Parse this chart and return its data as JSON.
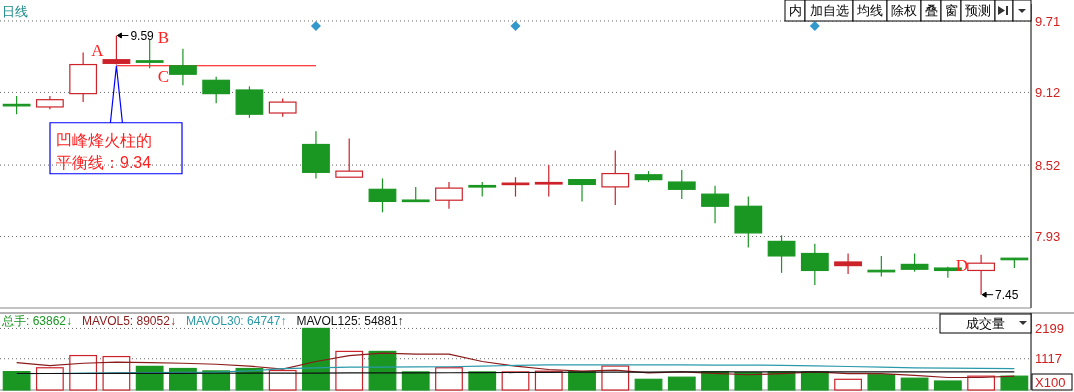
{
  "chart_data": [
    {
      "type": "candlestick",
      "title": "日线",
      "categories": [
        null,
        null,
        null,
        null,
        null,
        null,
        null,
        null,
        null,
        null,
        null,
        null,
        null,
        null,
        null,
        null,
        null,
        null,
        null,
        null,
        null,
        null,
        null,
        null,
        null,
        null,
        null,
        null,
        null,
        null,
        null
      ],
      "ohlc": [
        [
          9.02,
          9.09,
          8.94,
          9.01
        ],
        [
          9.0,
          9.09,
          8.98,
          9.06
        ],
        [
          9.11,
          9.45,
          9.04,
          9.35
        ],
        [
          9.36,
          9.59,
          9.35,
          9.39
        ],
        [
          9.38,
          9.56,
          9.32,
          9.37
        ],
        [
          9.34,
          9.48,
          9.18,
          9.27
        ],
        [
          9.22,
          9.25,
          9.03,
          9.11
        ],
        [
          9.14,
          9.17,
          8.91,
          8.94
        ],
        [
          8.95,
          9.07,
          8.92,
          9.04
        ],
        [
          8.69,
          8.8,
          8.41,
          8.46
        ],
        [
          8.42,
          8.74,
          8.42,
          8.47
        ],
        [
          8.32,
          8.41,
          8.13,
          8.22
        ],
        [
          8.23,
          8.34,
          8.22,
          8.22
        ],
        [
          8.23,
          8.38,
          8.16,
          8.33
        ],
        [
          8.35,
          8.38,
          8.26,
          8.34
        ],
        [
          8.36,
          8.42,
          8.26,
          8.37
        ],
        [
          8.37,
          8.52,
          8.26,
          8.37
        ],
        [
          8.4,
          8.4,
          8.22,
          8.36
        ],
        [
          8.34,
          8.64,
          8.19,
          8.45
        ],
        [
          8.44,
          8.47,
          8.38,
          8.4
        ],
        [
          8.38,
          8.48,
          8.24,
          8.32
        ],
        [
          8.28,
          8.35,
          8.04,
          8.18
        ],
        [
          8.18,
          8.26,
          7.84,
          7.96
        ],
        [
          7.89,
          7.94,
          7.63,
          7.77
        ],
        [
          7.79,
          7.87,
          7.53,
          7.65
        ],
        [
          7.69,
          7.79,
          7.62,
          7.72
        ],
        [
          7.65,
          7.77,
          7.6,
          7.64
        ],
        [
          7.7,
          7.79,
          7.64,
          7.66
        ],
        [
          7.67,
          7.68,
          7.59,
          7.65
        ],
        [
          7.65,
          7.78,
          7.45,
          7.71
        ],
        [
          7.75,
          7.75,
          7.67,
          7.74
        ]
      ],
      "colors": [
        "#1a9622",
        "#cc2229",
        "#cc2229",
        "#cc2229",
        "#1a9622",
        "#1a9622",
        "#1a9622",
        "#1a9622",
        "#cc2229",
        "#1a9622",
        "#cc2229",
        "#1a9622",
        "#1a9622",
        "#cc2229",
        "#1a9622",
        "#cc2229",
        "#cc2229",
        "#1a9622",
        "#cc2229",
        "#1a9622",
        "#1a9622",
        "#1a9622",
        "#1a9622",
        "#1a9622",
        "#1a9622",
        "#cc2229",
        "#1a9622",
        "#1a9622",
        "#1a9622",
        "#cc2229",
        "#1a9622"
      ],
      "ylim": [
        7.34,
        9.85
      ],
      "yticks": [
        9.71,
        9.12,
        8.52,
        7.93
      ],
      "grid": "y",
      "ref_lines": [
        {
          "axis": "y",
          "value": 9.34,
          "label": "凹峰烽火柱的平衡线：9.34",
          "color": "#ff0000"
        }
      ],
      "annotations": [
        "A",
        "9.59",
        "B",
        "C",
        "D",
        "7.45",
        "内",
        "加自选",
        "均线",
        "除权",
        "叠",
        "窗",
        "预测"
      ]
    },
    {
      "type": "bar",
      "categories": [
        null,
        null,
        null,
        null,
        null,
        null,
        null,
        null,
        null,
        null,
        null,
        null,
        null,
        null,
        null,
        null,
        null,
        null,
        null,
        null,
        null,
        null,
        null,
        null,
        null,
        null,
        null,
        null,
        null,
        null,
        null
      ],
      "ylim": [
        0,
        2750
      ],
      "yticks": [
        2199,
        1117
      ],
      "ylabel": "X100",
      "grid": "y",
      "legend": "top left",
      "annotations": [
        "成交量"
      ],
      "series": [
        {
          "name": "总手: 63862↓",
          "type": "bar",
          "color": "#1a9622",
          "colors": [
            "#1a9622",
            "#cc2229",
            "#cc2229",
            "#cc2229",
            "#1a9622",
            "#1a9622",
            "#1a9622",
            "#1a9622",
            "#cc2229",
            "#1a9622",
            "#cc2229",
            "#1a9622",
            "#1a9622",
            "#cc2229",
            "#1a9622",
            "#cc2229",
            "#cc2229",
            "#1a9622",
            "#cc2229",
            "#1a9622",
            "#1a9622",
            "#1a9622",
            "#1a9622",
            "#1a9622",
            "#1a9622",
            "#cc2229",
            "#1a9622",
            "#1a9622",
            "#1a9622",
            "#cc2229",
            "#1a9622"
          ],
          "values": [
            656,
            794,
            1230,
            1194,
            844,
            768,
            682,
            768,
            696,
            2199,
            1378,
            1378,
            646,
            794,
            646,
            646,
            671,
            656,
            855,
            382,
            458,
            656,
            620,
            646,
            646,
            382,
            545,
            422,
            321,
            494,
            494
          ]
        },
        {
          "name": "MAVOL5: 89052↓",
          "type": "line",
          "color": "#8b1a1a",
          "values": [
            981,
            869,
            956,
            992,
            981,
            956,
            920,
            855,
            743,
            1017,
            1230,
            1317,
            1281,
            1281,
            1017,
            855,
            732,
            671,
            707,
            610,
            646,
            595,
            545,
            584,
            646,
            584,
            584,
            519,
            447,
            447,
            494
          ]
        },
        {
          "name": "MAVOL30: 64747↑",
          "type": "line",
          "color": "#2a9aaa",
          "values": [
            584,
            590,
            600,
            610,
            620,
            630,
            640,
            680,
            760,
            790,
            819,
            819,
            825,
            830,
            850,
            880,
            895,
            895,
            895,
            895,
            895,
            890,
            890,
            880,
            860,
            840,
            820,
            790,
            780,
            770,
            760
          ]
        },
        {
          "name": "MAVOL125: 54881↑",
          "type": "line",
          "color": "#111111",
          "values": [
            590,
            590,
            590,
            592,
            594,
            596,
            598,
            600,
            600,
            605,
            610,
            612,
            614,
            616,
            620,
            625,
            630,
            635,
            640,
            640,
            645,
            648,
            650,
            650,
            650,
            650,
            650,
            650,
            650,
            650,
            650
          ]
        }
      ]
    }
  ]
}
